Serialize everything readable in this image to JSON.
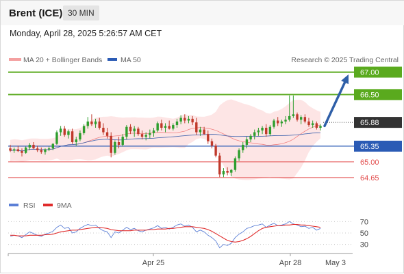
{
  "header": {
    "instrument": "Brent (ICE)",
    "timeframe": "30 MIN",
    "datetime": "Monday, April 28, 2025 5:26:57 AM CET"
  },
  "legend": {
    "bollinger_label": "MA 20 + Bollinger Bands",
    "ma50_label": "MA 50",
    "copyright": "Research © 2025 Trading Central",
    "rsi_label": "RSI",
    "rsi_ma_label": "9MA"
  },
  "colors": {
    "up": "#2e9e2e",
    "down": "#c0392b",
    "resistance": "#5aaa1e",
    "support": "#2b5bb5",
    "lower_support": "#e24a4a",
    "bollinger_fill": "#fde0e0",
    "ma20": "#f08080",
    "ma50": "#4a6ab0",
    "rsi": "#5b7fd6",
    "rsi_ma": "#e02b2b",
    "arrow": "#2f5fa8",
    "last_price": "#333333"
  },
  "chart_data": [
    {
      "type": "candlestick",
      "ylim": [
        64.45,
        67.1
      ],
      "x_tick_labels": [
        "Apr 25",
        "Apr 28",
        "May 3"
      ],
      "levels": [
        {
          "value": 67.0,
          "label": "67.00",
          "kind": "resistance"
        },
        {
          "value": 66.5,
          "label": "66.50",
          "kind": "resistance"
        },
        {
          "value": 65.88,
          "label": "65.88",
          "kind": "last_price"
        },
        {
          "value": 65.35,
          "label": "65.35",
          "kind": "support"
        },
        {
          "value": 65.0,
          "label": "65.00",
          "kind": "lower_support"
        },
        {
          "value": 64.65,
          "label": "64.65",
          "kind": "lower_support"
        }
      ],
      "forecast_arrow": {
        "from": 65.8,
        "to": 66.95
      },
      "ohlc": [
        [
          65.3,
          65.38,
          65.22,
          65.25
        ],
        [
          65.25,
          65.32,
          65.2,
          65.28
        ],
        [
          65.28,
          65.36,
          65.22,
          65.24
        ],
        [
          65.24,
          65.3,
          65.12,
          65.2
        ],
        [
          65.2,
          65.34,
          65.18,
          65.32
        ],
        [
          65.32,
          65.42,
          65.26,
          65.38
        ],
        [
          65.38,
          65.44,
          65.28,
          65.3
        ],
        [
          65.3,
          65.36,
          65.22,
          65.26
        ],
        [
          65.26,
          65.32,
          65.18,
          65.22
        ],
        [
          65.22,
          65.3,
          65.16,
          65.28
        ],
        [
          65.28,
          65.34,
          65.24,
          65.3
        ],
        [
          65.3,
          65.42,
          65.26,
          65.4
        ],
        [
          65.4,
          65.7,
          65.38,
          65.66
        ],
        [
          65.66,
          65.8,
          65.58,
          65.74
        ],
        [
          65.74,
          65.8,
          65.56,
          65.6
        ],
        [
          65.6,
          65.72,
          65.52,
          65.68
        ],
        [
          65.68,
          65.74,
          65.4,
          65.44
        ],
        [
          65.44,
          65.56,
          65.36,
          65.5
        ],
        [
          65.5,
          65.7,
          65.46,
          65.64
        ],
        [
          65.64,
          65.84,
          65.6,
          65.8
        ],
        [
          65.8,
          66.0,
          65.74,
          65.9
        ],
        [
          65.9,
          66.06,
          65.8,
          65.84
        ],
        [
          65.84,
          65.96,
          65.76,
          65.9
        ],
        [
          65.9,
          65.98,
          65.72,
          65.76
        ],
        [
          65.76,
          65.86,
          65.6,
          65.66
        ],
        [
          65.66,
          65.76,
          65.52,
          65.58
        ],
        [
          65.58,
          65.66,
          65.1,
          65.2
        ],
        [
          65.2,
          65.48,
          65.16,
          65.44
        ],
        [
          65.44,
          65.56,
          65.3,
          65.38
        ],
        [
          65.38,
          65.62,
          65.34,
          65.56
        ],
        [
          65.56,
          65.82,
          65.5,
          65.78
        ],
        [
          65.78,
          65.84,
          65.62,
          65.68
        ],
        [
          65.68,
          65.8,
          65.56,
          65.74
        ],
        [
          65.74,
          65.78,
          65.58,
          65.62
        ],
        [
          65.62,
          65.7,
          65.5,
          65.56
        ],
        [
          65.56,
          65.66,
          65.48,
          65.6
        ],
        [
          65.6,
          65.72,
          65.52,
          65.64
        ],
        [
          65.64,
          65.76,
          65.56,
          65.7
        ],
        [
          65.7,
          65.9,
          65.66,
          65.86
        ],
        [
          65.86,
          65.94,
          65.7,
          65.76
        ],
        [
          65.76,
          65.86,
          65.66,
          65.8
        ],
        [
          65.8,
          65.92,
          65.72,
          65.74
        ],
        [
          65.74,
          65.86,
          65.7,
          65.82
        ],
        [
          65.82,
          65.96,
          65.76,
          65.9
        ],
        [
          65.9,
          66.04,
          65.84,
          65.98
        ],
        [
          65.98,
          66.06,
          65.86,
          65.92
        ],
        [
          65.92,
          66.02,
          65.86,
          65.96
        ],
        [
          65.96,
          66.02,
          65.82,
          65.88
        ],
        [
          65.88,
          65.98,
          65.6,
          65.66
        ],
        [
          65.66,
          65.78,
          65.58,
          65.72
        ],
        [
          65.72,
          65.78,
          65.6,
          65.62
        ],
        [
          65.62,
          65.7,
          65.4,
          65.46
        ],
        [
          65.46,
          65.52,
          65.3,
          65.36
        ],
        [
          65.36,
          65.4,
          65.1,
          65.14
        ],
        [
          65.14,
          65.2,
          64.66,
          64.72
        ],
        [
          64.72,
          64.86,
          64.66,
          64.8
        ],
        [
          64.8,
          64.88,
          64.7,
          64.76
        ],
        [
          64.76,
          64.84,
          64.68,
          64.82
        ],
        [
          64.82,
          65.12,
          64.78,
          65.08
        ],
        [
          65.08,
          65.3,
          65.02,
          65.26
        ],
        [
          65.26,
          65.44,
          65.2,
          65.38
        ],
        [
          65.38,
          65.56,
          65.3,
          65.5
        ],
        [
          65.5,
          65.62,
          65.44,
          65.58
        ],
        [
          65.58,
          65.72,
          65.5,
          65.66
        ],
        [
          65.66,
          65.76,
          65.58,
          65.7
        ],
        [
          65.7,
          65.8,
          65.62,
          65.76
        ],
        [
          65.76,
          65.84,
          65.56,
          65.62
        ],
        [
          65.62,
          65.82,
          65.58,
          65.78
        ],
        [
          65.78,
          65.96,
          65.74,
          65.92
        ],
        [
          65.92,
          66.0,
          65.8,
          65.86
        ],
        [
          65.86,
          65.94,
          65.78,
          65.9
        ],
        [
          65.9,
          66.02,
          65.84,
          65.94
        ],
        [
          65.94,
          66.48,
          65.9,
          66.02
        ],
        [
          66.02,
          66.48,
          65.98,
          66.06
        ],
        [
          66.06,
          66.1,
          65.9,
          65.94
        ],
        [
          65.94,
          66.04,
          65.84,
          66.0
        ],
        [
          66.0,
          66.06,
          65.86,
          65.9
        ],
        [
          65.9,
          65.98,
          65.78,
          65.82
        ],
        [
          65.82,
          65.92,
          65.76,
          65.86
        ],
        [
          65.86,
          65.9,
          65.72,
          65.76
        ],
        [
          65.76,
          65.84,
          65.7,
          65.8
        ]
      ]
    },
    {
      "type": "line",
      "name": "RSI",
      "ylim": [
        20,
        80
      ],
      "y_tick_labels": [
        "70",
        "50",
        "30"
      ],
      "y_ticks": [
        70,
        50,
        30
      ],
      "series": [
        {
          "name": "RSI",
          "values": [
            44,
            46,
            45,
            42,
            47,
            52,
            49,
            46,
            44,
            48,
            50,
            53,
            60,
            64,
            58,
            60,
            50,
            52,
            58,
            62,
            65,
            63,
            64,
            58,
            54,
            52,
            42,
            52,
            50,
            55,
            60,
            56,
            58,
            54,
            52,
            55,
            57,
            59,
            63,
            58,
            60,
            57,
            60,
            64,
            66,
            62,
            64,
            60,
            52,
            55,
            52,
            46,
            42,
            36,
            24,
            30,
            28,
            32,
            42,
            48,
            52,
            58,
            60,
            63,
            64,
            66,
            60,
            64,
            67,
            63,
            64,
            66,
            70,
            66,
            64,
            61,
            62,
            58,
            60,
            55,
            58
          ]
        },
        {
          "name": "9MA",
          "values": [
            46,
            46,
            45,
            45,
            45,
            46,
            46,
            46,
            46,
            47,
            47,
            48,
            50,
            52,
            53,
            54,
            55,
            55,
            56,
            57,
            58,
            59,
            60,
            60,
            59,
            58,
            56,
            55,
            54,
            54,
            54,
            54,
            55,
            55,
            55,
            55,
            56,
            56,
            57,
            57,
            57,
            58,
            58,
            59,
            60,
            61,
            61,
            61,
            60,
            59,
            58,
            56,
            53,
            49,
            45,
            41,
            37,
            35,
            34,
            35,
            37,
            40,
            44,
            49,
            54,
            58,
            60,
            61,
            62,
            63,
            63,
            64,
            64,
            65,
            65,
            64,
            64,
            63,
            62,
            61,
            60
          ]
        }
      ]
    }
  ]
}
